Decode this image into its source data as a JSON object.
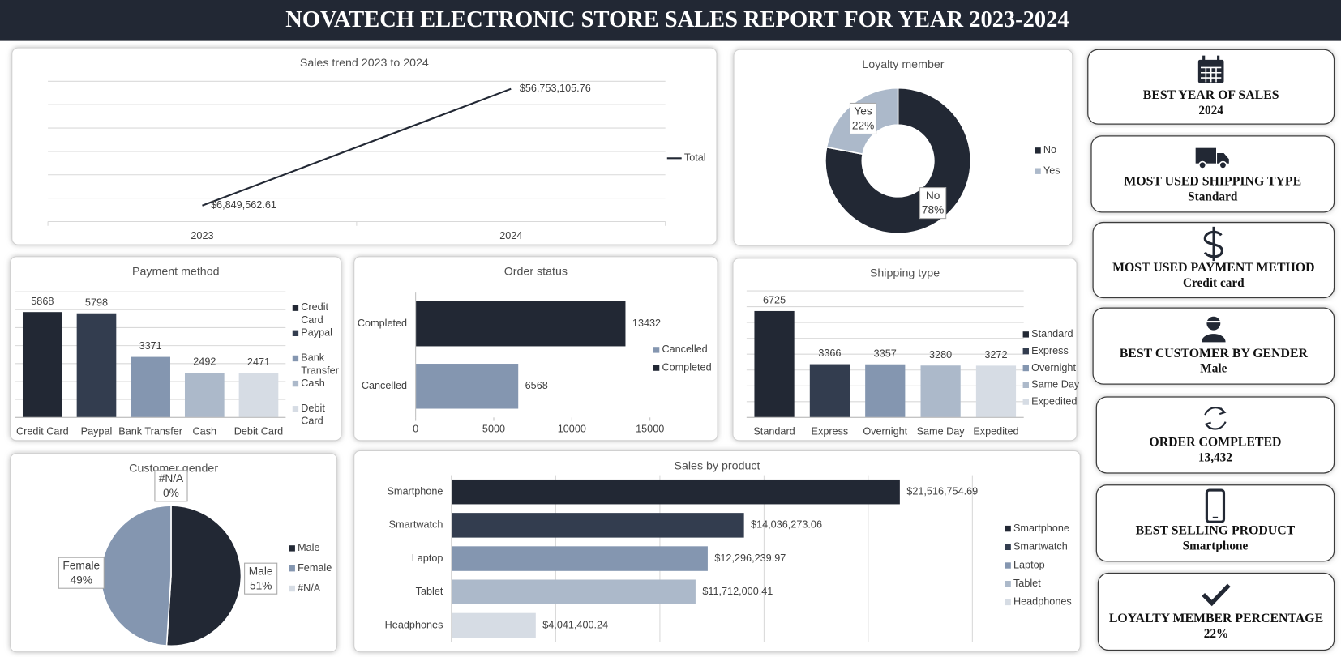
{
  "header": {
    "title": "NOVATECH ELECTRONIC STORE SALES REPORT FOR YEAR 2023-2024"
  },
  "chart_data": [
    {
      "type": "line",
      "title": "Sales trend 2023 to 2024",
      "categories": [
        "2023",
        "2024"
      ],
      "series": [
        {
          "name": "Total",
          "color": "#222834",
          "values": [
            6849562.61,
            56753105.76
          ],
          "value_labels": [
            "$6,849,562.61",
            "$56,753,105.76"
          ]
        }
      ],
      "ylim": [
        0,
        60000000
      ],
      "yticks": [
        0,
        10000000,
        20000000,
        30000000,
        40000000,
        50000000,
        60000000
      ],
      "y_tick_labels": false,
      "grid": true,
      "legend": "right"
    },
    {
      "type": "donut",
      "title": "Loyalty member",
      "categories": [
        "No",
        "Yes"
      ],
      "values": [
        78,
        22
      ],
      "value_labels": [
        "78%",
        "22%"
      ],
      "colors": [
        "#222834",
        "#acb9ca"
      ],
      "legend": "right"
    },
    {
      "type": "bar",
      "title": "Payment method",
      "categories": [
        "Credit Card",
        "Paypal",
        "Bank Transfer",
        "Cash",
        "Debit Card"
      ],
      "values": [
        5868,
        5798,
        3371,
        2492,
        2471
      ],
      "colors": [
        "#222834",
        "#333d4f",
        "#8496b0",
        "#acb9ca",
        "#d6dce4"
      ],
      "ylim": [
        0,
        7000
      ],
      "yticks": [
        0,
        1000,
        2000,
        3000,
        4000,
        5000,
        6000,
        7000
      ],
      "y_tick_labels": false,
      "grid": true,
      "legend": "right"
    },
    {
      "type": "hbar",
      "title": "Order status",
      "categories": [
        "Completed",
        "Cancelled"
      ],
      "values": [
        13432,
        6568
      ],
      "colors": [
        "#222834",
        "#8496b0"
      ],
      "xlim": [
        0,
        15000
      ],
      "xticks": [
        0,
        5000,
        10000,
        15000
      ],
      "x_tick_labels": true,
      "grid": false,
      "legend": "right"
    },
    {
      "type": "bar",
      "title": "Shipping type",
      "categories": [
        "Standard",
        "Express",
        "Overnight",
        "Same Day",
        "Expedited"
      ],
      "values": [
        6725,
        3366,
        3357,
        3280,
        3272
      ],
      "colors": [
        "#222834",
        "#333d4f",
        "#8496b0",
        "#acb9ca",
        "#d6dce4"
      ],
      "ylim": [
        0,
        8000
      ],
      "yticks": [
        0,
        1000,
        2000,
        3000,
        4000,
        5000,
        6000,
        7000,
        8000
      ],
      "y_tick_labels": false,
      "grid": true,
      "legend": "right"
    },
    {
      "type": "pie",
      "title": "Customer gender",
      "categories": [
        "Male",
        "Female",
        "#N/A"
      ],
      "values": [
        51,
        49,
        0
      ],
      "value_labels": [
        "51%",
        "49%",
        "0%"
      ],
      "colors": [
        "#222834",
        "#8496b0",
        "#d6dce4"
      ],
      "legend": "right"
    },
    {
      "type": "hbar",
      "title": "Sales by product",
      "categories": [
        "Smartphone",
        "Smartwatch",
        "Laptop",
        "Tablet",
        "Headphones"
      ],
      "values": [
        21516754.69,
        14036273.06,
        12296239.97,
        11712000.41,
        4041400.24
      ],
      "value_labels": [
        "$21,516,754.69",
        "$14,036,273.06",
        "$12,296,239.97",
        "$11,712,000.41",
        "$4,041,400.24"
      ],
      "colors": [
        "#222834",
        "#333d4f",
        "#8496b0",
        "#acb9ca",
        "#d6dce4"
      ],
      "xlim": [
        0,
        25000000
      ],
      "xticks": [
        0,
        5000000,
        10000000,
        15000000,
        20000000,
        25000000
      ],
      "x_tick_labels": false,
      "grid": true,
      "legend": "right"
    }
  ],
  "cards": [
    {
      "title": "BEST YEAR OF SALES",
      "value": "2024"
    },
    {
      "title": "MOST USED SHIPPING TYPE",
      "value": "Standard"
    },
    {
      "title": "MOST USED PAYMENT METHOD",
      "value": "Credit card"
    },
    {
      "title": "BEST CUSTOMER BY GENDER",
      "value": "Male"
    },
    {
      "title": "ORDER COMPLETED",
      "value": "13,432"
    },
    {
      "title": "BEST SELLING PRODUCT",
      "value": "Smartphone"
    },
    {
      "title": "LOYALTY MEMBER PERCENTAGE",
      "value": "22%"
    }
  ]
}
